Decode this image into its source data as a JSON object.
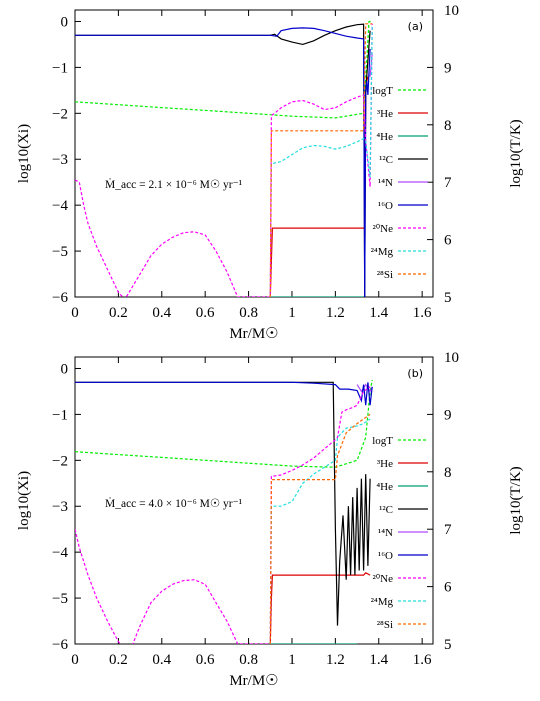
{
  "colors": {
    "logT": "#00ee00",
    "He3": "#dd0000",
    "He4": "#009e73",
    "C12": "#000000",
    "N14": "#b04bff",
    "O16": "#0000cc",
    "Ne20": "#ff00ff",
    "Mg24": "#22dddd",
    "Si28": "#ff6600"
  },
  "chart_data": [
    {
      "type": "line",
      "panel_tag": "(a)",
      "annotation": "Ṁ_acc = 2.1 × 10⁻⁶ M☉ yr⁻¹",
      "xlabel": "Mr/M☉",
      "ylabel": "log10(Xi)",
      "y2label": "log10(T/K)",
      "xlim": [
        0,
        1.65
      ],
      "ylim": [
        -6,
        0.25
      ],
      "y2lim": [
        5,
        10
      ],
      "xticks": [
        "0",
        "0.2",
        "0.4",
        "0.6",
        "0.8",
        "1",
        "1.2",
        "1.4",
        "1.6"
      ],
      "yticks": [
        "0",
        "−1",
        "−2",
        "−3",
        "−4",
        "−5",
        "−6"
      ],
      "y2ticks": [
        "10",
        "9",
        "8",
        "7",
        "6",
        "5"
      ],
      "legend_position": "right",
      "series": [
        {
          "key": "logT",
          "name": "logT",
          "dash": "dashed",
          "axis": "right",
          "x": [
            0,
            0.2,
            0.4,
            0.6,
            0.8,
            1.0,
            1.2,
            1.33,
            1.34,
            1.355,
            1.37
          ],
          "y": [
            8.4,
            8.35,
            8.3,
            8.25,
            8.2,
            8.15,
            8.12,
            8.2,
            8.8,
            9.8,
            9.8
          ]
        },
        {
          "key": "He3",
          "name": "³He",
          "dash": "solid",
          "x": [
            0.9,
            0.905,
            0.91,
            1.2,
            1.33,
            1.335,
            1.34,
            1.345,
            1.35
          ],
          "y": [
            -6,
            -5.2,
            -4.5,
            -4.5,
            -4.5,
            -4.5,
            -1.6,
            -1.3,
            -1.2
          ]
        },
        {
          "key": "He4",
          "name": "⁴He",
          "dash": "solid",
          "x": [
            0.9,
            1.33
          ],
          "y": [
            -6,
            -6
          ]
        },
        {
          "key": "C12",
          "name": "¹²C",
          "dash": "solid",
          "x": [
            0,
            0.9,
            0.92,
            0.95,
            1.0,
            1.05,
            1.1,
            1.15,
            1.2,
            1.25,
            1.3,
            1.33,
            1.335,
            1.34,
            1.36
          ],
          "y": [
            -0.3,
            -0.3,
            -0.28,
            -0.38,
            -0.45,
            -0.5,
            -0.42,
            -0.3,
            -0.2,
            -0.12,
            -0.07,
            -0.06,
            -6,
            -1.5,
            -0.2
          ]
        },
        {
          "key": "N14",
          "name": "¹⁴N",
          "dash": "solid",
          "x": [
            1.36,
            1.37
          ],
          "y": [
            -1.2,
            -0.7
          ]
        },
        {
          "key": "O16",
          "name": "¹⁶O",
          "dash": "solid",
          "x": [
            0,
            0.9,
            0.93,
            0.95,
            1.0,
            1.05,
            1.1,
            1.15,
            1.2,
            1.25,
            1.3,
            1.33,
            1.335,
            1.34,
            1.345,
            1.35,
            1.36
          ],
          "y": [
            -0.3,
            -0.3,
            -0.32,
            -0.2,
            -0.15,
            -0.14,
            -0.15,
            -0.2,
            -0.26,
            -0.32,
            -0.36,
            -0.38,
            -6,
            -1.6,
            -1.3,
            -1.6,
            -0.6
          ]
        },
        {
          "key": "Ne20",
          "name": "²⁰Ne",
          "dash": "dashed",
          "x": [
            0,
            0.02,
            0.04,
            0.06,
            0.1,
            0.15,
            0.2,
            0.23,
            0.3,
            0.35,
            0.4,
            0.45,
            0.5,
            0.55,
            0.6,
            0.65,
            0.7,
            0.75,
            0.9,
            0.905,
            0.92,
            0.95,
            1.0,
            1.05,
            1.1,
            1.15,
            1.2,
            1.25,
            1.3,
            1.33,
            1.34,
            1.36,
            1.37
          ],
          "y": [
            -3.45,
            -3.5,
            -4.0,
            -4.4,
            -4.9,
            -5.4,
            -5.9,
            -6.05,
            -5.5,
            -5.1,
            -4.85,
            -4.7,
            -4.6,
            -4.58,
            -4.65,
            -5.0,
            -5.45,
            -6.0,
            -6,
            -2.05,
            -2.0,
            -1.88,
            -1.75,
            -1.72,
            -1.8,
            -1.92,
            -1.88,
            -1.75,
            -1.65,
            -1.6,
            -2.6,
            -3.6,
            -0.05
          ]
        },
        {
          "key": "Mg24",
          "name": "²⁴Mg",
          "dash": "dashed",
          "x": [
            0.9,
            0.905,
            0.95,
            1.0,
            1.05,
            1.1,
            1.15,
            1.2,
            1.25,
            1.3,
            1.33,
            1.34,
            1.36,
            1.37
          ],
          "y": [
            -6,
            -3.1,
            -3.05,
            -2.9,
            -2.75,
            -2.7,
            -2.72,
            -2.78,
            -2.72,
            -2.62,
            -2.55,
            -2.6,
            -3.4,
            -0.1
          ]
        },
        {
          "key": "Si28",
          "name": "²⁸Si",
          "dash": "dashed",
          "x": [
            0.9,
            0.905,
            0.95,
            1.0,
            1.1,
            1.2,
            1.3,
            1.33,
            1.34,
            1.35,
            1.36,
            1.37
          ],
          "y": [
            -6,
            -2.38,
            -2.38,
            -2.38,
            -2.38,
            -2.38,
            -2.38,
            -2.38,
            -0.05,
            -0.05,
            -0.05,
            -0.05
          ]
        }
      ]
    },
    {
      "type": "line",
      "panel_tag": "(b)",
      "annotation": "Ṁ_acc = 4.0 × 10⁻⁶ M☉ yr⁻¹",
      "xlabel": "Mr/M☉",
      "ylabel": "log10(Xi)",
      "y2label": "log10(T/K)",
      "xlim": [
        0,
        1.65
      ],
      "ylim": [
        -6,
        0.25
      ],
      "y2lim": [
        5,
        10
      ],
      "xticks": [
        "0",
        "0.2",
        "0.4",
        "0.6",
        "0.8",
        "1",
        "1.2",
        "1.4",
        "1.6"
      ],
      "yticks": [
        "0",
        "−1",
        "−2",
        "−3",
        "−4",
        "−5",
        "−6"
      ],
      "y2ticks": [
        "10",
        "9",
        "8",
        "7",
        "6",
        "5"
      ],
      "legend_position": "right",
      "series": [
        {
          "key": "logT",
          "name": "logT",
          "dash": "dashed",
          "axis": "right",
          "x": [
            0,
            0.2,
            0.4,
            0.6,
            0.8,
            1.0,
            1.2,
            1.3,
            1.34,
            1.36,
            1.37
          ],
          "y": [
            8.35,
            8.3,
            8.25,
            8.2,
            8.15,
            8.1,
            8.08,
            8.2,
            8.6,
            9.4,
            9.6
          ]
        },
        {
          "key": "He3",
          "name": "³He",
          "dash": "solid",
          "x": [
            0.9,
            0.905,
            0.91,
            1.1,
            1.2,
            1.3,
            1.33,
            1.34,
            1.36
          ],
          "y": [
            -6,
            -5.0,
            -4.5,
            -4.5,
            -4.5,
            -4.5,
            -4.5,
            -4.45,
            -4.5
          ]
        },
        {
          "key": "He4",
          "name": "⁴He",
          "dash": "solid",
          "x": [
            0.9,
            1.3
          ],
          "y": [
            -6,
            -6
          ]
        },
        {
          "key": "C12",
          "name": "¹²C",
          "dash": "solid",
          "x": [
            0,
            0.9,
            1.0,
            1.1,
            1.19,
            1.2,
            1.21,
            1.22,
            1.235,
            1.25,
            1.26,
            1.27,
            1.28,
            1.29,
            1.3,
            1.31,
            1.32,
            1.33,
            1.34,
            1.35,
            1.36
          ],
          "y": [
            -0.3,
            -0.3,
            -0.3,
            -0.3,
            -0.3,
            -3.5,
            -5.6,
            -4.2,
            -3.2,
            -4.6,
            -3.0,
            -4.5,
            -2.8,
            -4.5,
            -2.6,
            -4.4,
            -2.4,
            -4.4,
            -2.3,
            -4.3,
            -2.4
          ]
        },
        {
          "key": "N14",
          "name": "¹⁴N",
          "dash": "solid",
          "x": [
            1.3,
            1.32,
            1.34,
            1.36,
            1.37
          ],
          "y": [
            -0.35,
            -0.5,
            -0.35,
            -0.5,
            -0.4
          ]
        },
        {
          "key": "O16",
          "name": "¹⁶O",
          "dash": "solid",
          "x": [
            0,
            0.9,
            1.0,
            1.1,
            1.2,
            1.22,
            1.26,
            1.3,
            1.32,
            1.33,
            1.34,
            1.35,
            1.36,
            1.37
          ],
          "y": [
            -0.3,
            -0.3,
            -0.3,
            -0.32,
            -0.35,
            -0.45,
            -0.45,
            -0.48,
            -0.7,
            -0.35,
            -0.8,
            -0.3,
            -0.8,
            -0.4
          ]
        },
        {
          "key": "Ne20",
          "name": "²⁰Ne",
          "dash": "dashed",
          "x": [
            0,
            0.02,
            0.06,
            0.1,
            0.15,
            0.2,
            0.25,
            0.3,
            0.35,
            0.4,
            0.45,
            0.5,
            0.55,
            0.6,
            0.65,
            0.7,
            0.75,
            0.9,
            0.905,
            0.95,
            1.0,
            1.05,
            1.1,
            1.15,
            1.2,
            1.21,
            1.23,
            1.25,
            1.28,
            1.3,
            1.33,
            1.36
          ],
          "y": [
            -3.5,
            -3.9,
            -4.5,
            -5.0,
            -5.5,
            -5.95,
            -6.2,
            -5.6,
            -5.1,
            -4.85,
            -4.7,
            -4.62,
            -4.6,
            -4.7,
            -5.1,
            -5.5,
            -6.0,
            -6,
            -2.35,
            -2.32,
            -2.22,
            -2.1,
            -1.95,
            -1.75,
            -1.55,
            -1.5,
            -0.95,
            -0.9,
            -0.85,
            -0.8,
            -0.5,
            -0.4
          ]
        },
        {
          "key": "Mg24",
          "name": "²⁴Mg",
          "dash": "dashed",
          "x": [
            0.9,
            0.905,
            0.95,
            1.0,
            1.05,
            1.1,
            1.15,
            1.2,
            1.21,
            1.25,
            1.3,
            1.33,
            1.36
          ],
          "y": [
            -6,
            -3.0,
            -3.0,
            -2.9,
            -2.5,
            -2.3,
            -2.15,
            -2.0,
            -1.5,
            -1.3,
            -1.25,
            -1.2,
            -1.1
          ]
        },
        {
          "key": "Si28",
          "name": "²⁸Si",
          "dash": "dashed",
          "x": [
            0.9,
            0.905,
            1.0,
            1.1,
            1.2,
            1.21,
            1.25,
            1.3,
            1.33,
            1.36
          ],
          "y": [
            -6,
            -2.42,
            -2.42,
            -2.42,
            -2.42,
            -1.9,
            -1.4,
            -1.2,
            -1.1,
            -1.0
          ]
        }
      ]
    }
  ]
}
